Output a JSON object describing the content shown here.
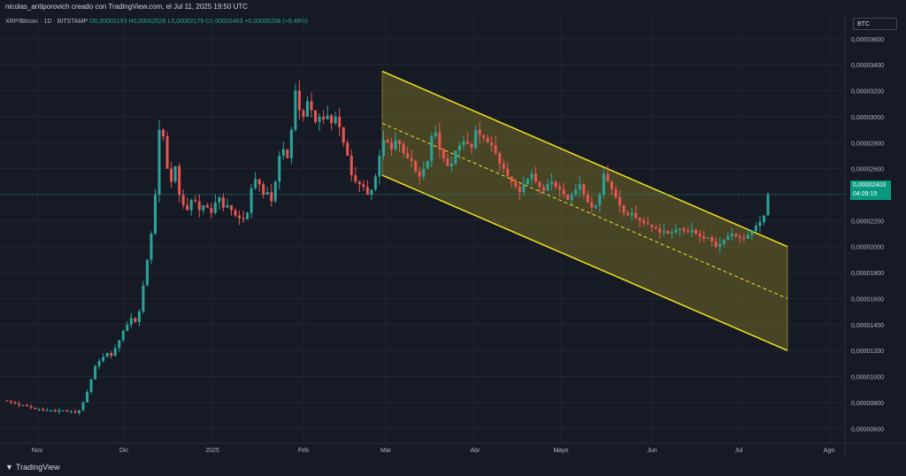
{
  "header": {
    "caption": "nicolas_antiporovich creado con TradingView.com, el Jul 11, 2025 19:50 UTC"
  },
  "legend": {
    "symbol": "XRP/Bitcoin · 1D · BITSTAMP",
    "open": "O0,00002193",
    "high": "H0,00002526",
    "low": "L0,00002179",
    "close": "C0,00002403",
    "change": "+0,00000208 (+9,48%)"
  },
  "currency_badge": "BTC",
  "last_price": {
    "value": "0,00002403",
    "countdown": "04:09:15"
  },
  "footer": {
    "brand": "TradingView"
  },
  "colors": {
    "background": "#161a25",
    "up": "#26a69a",
    "down": "#ef5350",
    "channel_line": "#f5e21b",
    "channel_fill": "#5a5428",
    "price_tag": "#089981"
  },
  "chart_data": {
    "type": "candlestick",
    "x_ticks": [
      "Nov",
      "Dic",
      "2025",
      "Feb",
      "Mar",
      "Abr",
      "Mayo",
      "Jun",
      "Jul",
      "Ago"
    ],
    "y_ticks": [
      "0,00000600",
      "0,00000800",
      "0,00001000",
      "0,00001200",
      "0,00001400",
      "0,00001600",
      "0,00001800",
      "0,00002000",
      "0,00002200",
      "0,00002400",
      "0,00002600",
      "0,00002800",
      "0,00003000",
      "0,00003200",
      "0,00003400",
      "0,00003600"
    ],
    "y_values": [
      6e-06,
      8e-06,
      1e-05,
      1.2e-05,
      1.4e-05,
      1.6e-05,
      1.8e-05,
      2e-05,
      2.2e-05,
      2.4e-05,
      2.6e-05,
      2.8e-05,
      3e-05,
      3.2e-05,
      3.4e-05,
      3.6e-05
    ],
    "ylim": [
      5.2e-06,
      3.64e-05
    ],
    "last_value": 2.403e-05,
    "close_series": [
      8.1e-06,
      8e-06,
      7.9e-06,
      7.8e-06,
      7.8e-06,
      7.7e-06,
      7.6e-06,
      7.5e-06,
      7.5e-06,
      7.4e-06,
      7.4e-06,
      7.4e-06,
      7.3e-06,
      7.4e-06,
      7.4e-06,
      7.3e-06,
      7.3e-06,
      7.2e-06,
      7.4e-06,
      8e-06,
      8.8e-06,
      9.8e-06,
      1.08e-05,
      1.12e-05,
      1.15e-05,
      1.18e-05,
      1.16e-05,
      1.22e-05,
      1.28e-05,
      1.35e-05,
      1.4e-05,
      1.45e-05,
      1.42e-05,
      1.5e-05,
      1.7e-05,
      1.9e-05,
      2.1e-05,
      2.4e-05,
      2.9e-05,
      2.85e-05,
      2.6e-05,
      2.5e-05,
      2.62e-05,
      2.4e-05,
      2.32e-05,
      2.28e-05,
      2.36e-05,
      2.35e-05,
      2.28e-05,
      2.32e-05,
      2.3e-05,
      2.26e-05,
      2.34e-05,
      2.38e-05,
      2.3e-05,
      2.32e-05,
      2.28e-05,
      2.24e-05,
      2.22e-05,
      2.21e-05,
      2.26e-05,
      2.45e-05,
      2.52e-05,
      2.48e-05,
      2.4e-05,
      2.42e-05,
      2.35e-05,
      2.5e-05,
      2.7e-05,
      2.75e-05,
      2.68e-05,
      2.9e-05,
      3.2e-05,
      3.05e-05,
      3e-05,
      3.12e-05,
      3.05e-05,
      2.96e-05,
      3e-05,
      2.98e-05,
      3.01e-05,
      2.95e-05,
      3e-05,
      2.92e-05,
      2.8e-05,
      2.7e-05,
      2.55e-05,
      2.5e-05,
      2.48e-05,
      2.46e-05,
      2.4e-05,
      2.44e-05,
      2.54e-05,
      2.7e-05,
      2.82e-05,
      2.8e-05,
      2.75e-05,
      2.82e-05,
      2.79e-05,
      2.72e-05,
      2.68e-05,
      2.66e-05,
      2.58e-05,
      2.54e-05,
      2.6e-05,
      2.66e-05,
      2.85e-05,
      2.88e-05,
      2.75e-05,
      2.68e-05,
      2.62e-05,
      2.64e-05,
      2.74e-05,
      2.78e-05,
      2.81e-05,
      2.79e-05,
      2.76e-05,
      2.9e-05,
      2.86e-05,
      2.84e-05,
      2.8e-05,
      2.78e-05,
      2.72e-05,
      2.64e-05,
      2.6e-05,
      2.54e-05,
      2.5e-05,
      2.46e-05,
      2.42e-05,
      2.48e-05,
      2.52e-05,
      2.56e-05,
      2.5e-05,
      2.46e-05,
      2.43e-05,
      2.48e-05,
      2.5e-05,
      2.46e-05,
      2.44e-05,
      2.4e-05,
      2.36e-05,
      2.4e-05,
      2.44e-05,
      2.48e-05,
      2.4e-05,
      2.34e-05,
      2.3e-05,
      2.32e-05,
      2.4e-05,
      2.56e-05,
      2.5e-05,
      2.44e-05,
      2.38e-05,
      2.32e-05,
      2.26e-05,
      2.24e-05,
      2.26e-05,
      2.22e-05,
      2.2e-05,
      2.18e-05,
      2.17e-05,
      2.15e-05,
      2.14e-05,
      2.11e-05,
      2.12e-05,
      2.1e-05,
      2.11e-05,
      2.13e-05,
      2.14e-05,
      2.12e-05,
      2.11e-05,
      2.13e-05,
      2.1e-05,
      2.08e-05,
      2.06e-05,
      2.07e-05,
      2.04e-05,
      2e-05,
      2.02e-05,
      2.05e-05,
      2.08e-05,
      2.1e-05,
      2.08e-05,
      2.07e-05,
      2.06e-05,
      2.09e-05,
      2.12e-05,
      2.16e-05,
      2.19e-05,
      2.24e-05,
      2.4e-05
    ],
    "channel": {
      "upper": [
        [
          "Mar",
          3.35e-05
        ],
        [
          "Jul+15d",
          2e-05
        ]
      ],
      "middle": [
        [
          "Mar",
          2.95e-05
        ],
        [
          "Jul+15d",
          1.6e-05
        ]
      ],
      "lower": [
        [
          "Mar",
          2.55e-05
        ],
        [
          "Jul+15d",
          1.2e-05
        ]
      ]
    }
  }
}
